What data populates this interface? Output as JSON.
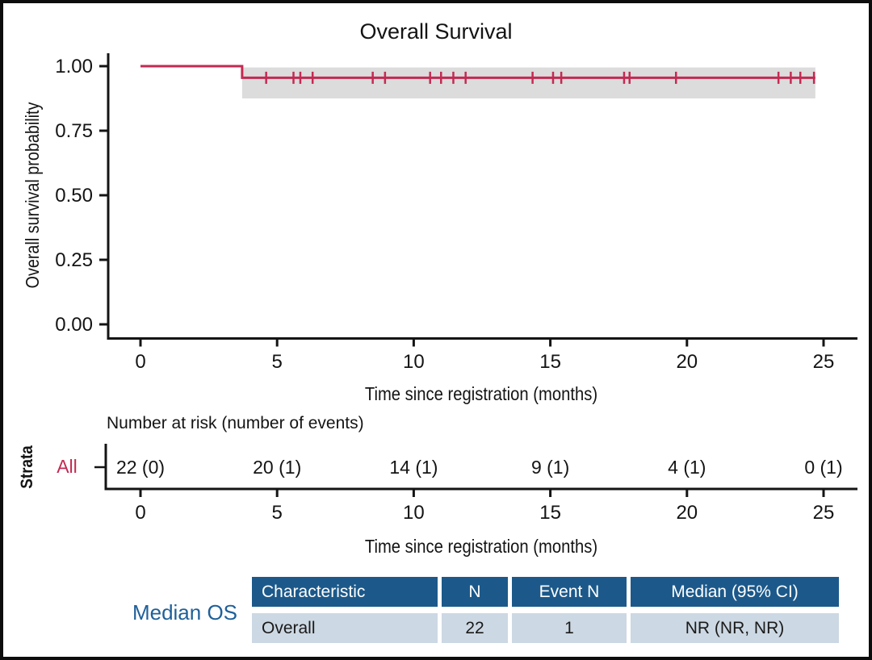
{
  "chart_data": {
    "type": "line",
    "subtype": "kaplan-meier-step",
    "title": "Overall Survival",
    "xlabel": "Time since registration (months)",
    "ylabel": "Overall survival probability",
    "xlim": [
      0,
      25
    ],
    "ylim": [
      0,
      1
    ],
    "x_ticks": [
      0,
      5,
      10,
      15,
      20,
      25
    ],
    "y_ticks": [
      {
        "label": "1.00",
        "value": 1.0
      },
      {
        "label": "0.75",
        "value": 0.75
      },
      {
        "label": "0.50",
        "value": 0.5
      },
      {
        "label": "0.25",
        "value": 0.25
      },
      {
        "label": "0.00",
        "value": 0.0
      }
    ],
    "grid": false,
    "legend_position": "none",
    "series": [
      {
        "name": "All",
        "color": "#c32a52",
        "steps": [
          [
            0,
            1.0
          ],
          [
            3.72,
            0.955
          ],
          [
            24.7,
            0.955
          ]
        ],
        "censor_times": [
          4.6,
          5.6,
          5.85,
          6.3,
          8.5,
          8.95,
          10.6,
          11.0,
          11.45,
          11.9,
          14.35,
          15.1,
          15.4,
          17.7,
          17.9,
          19.6,
          23.35,
          23.8,
          24.15,
          24.65
        ],
        "ci": {
          "t_start": 3.72,
          "t_end": 24.7,
          "lower": 0.875,
          "upper": 0.995,
          "color": "#dcdcdc"
        }
      }
    ],
    "risk_table": {
      "heading": "Number at risk (number of events)",
      "axis_label": "Strata",
      "xlabel": "Time since registration (months)",
      "x_ticks": [
        0,
        5,
        10,
        15,
        20,
        25
      ],
      "rows": [
        {
          "label": "All",
          "color": "#c32a52",
          "values": [
            "22 (0)",
            "20 (1)",
            "14 (1)",
            "9 (1)",
            "4 (1)",
            "0 (1)"
          ]
        }
      ]
    }
  },
  "median_table": {
    "label": "Median OS",
    "label_color": "#1f6099",
    "header_bg": "#1c598a",
    "row_bg": "#ccd8e3",
    "headers": [
      "Characteristic",
      "N",
      "Event N",
      "Median (95% CI)"
    ],
    "rows": [
      [
        "Overall",
        "22",
        "1",
        "NR (NR, NR)"
      ]
    ]
  }
}
